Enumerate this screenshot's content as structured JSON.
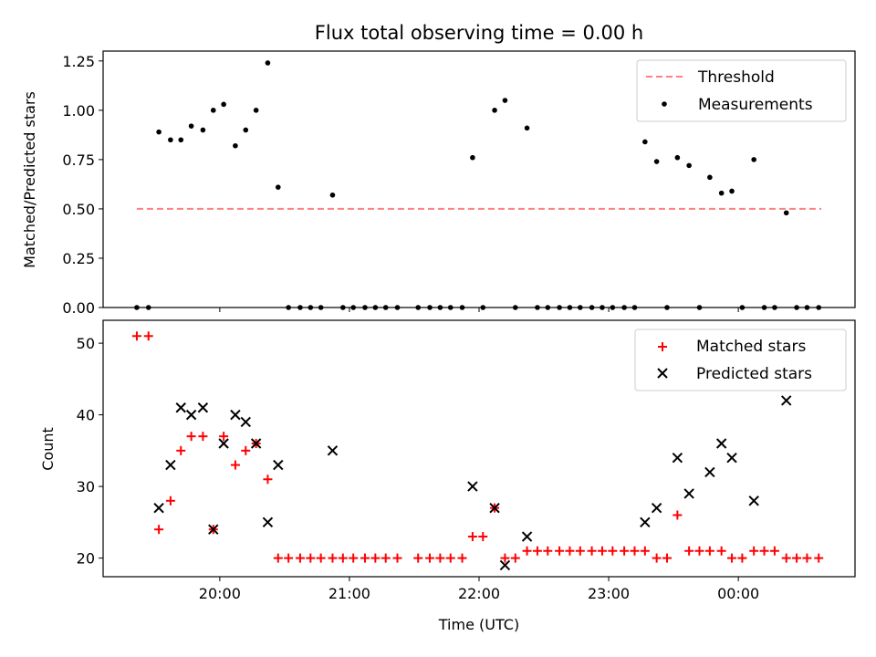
{
  "chart_data": {
    "title": "Flux total observing time = 0.00 h",
    "xlabel": "Time (UTC)",
    "x_ticks": [
      "20:00",
      "21:00",
      "22:00",
      "23:00",
      "00:00"
    ],
    "x_tick_hours": [
      20,
      21,
      22,
      23,
      24
    ],
    "xlim_hours": [
      19.1,
      24.9
    ],
    "panels": [
      {
        "type": "scatter",
        "ylabel": "Matched/Predicted stars",
        "ylim": [
          0,
          1.3
        ],
        "y_ticks": [
          0.0,
          0.25,
          0.5,
          0.75,
          1.0,
          1.25
        ],
        "y_tick_labels": [
          "0.00",
          "0.25",
          "0.50",
          "0.75",
          "1.00",
          "1.25"
        ],
        "legend_position": "top-right",
        "threshold": {
          "name": "Threshold",
          "value": 0.5,
          "x_range": [
            19.36,
            24.64
          ],
          "color": "#ff8080"
        },
        "series": [
          {
            "name": "Measurements",
            "color": "#000000",
            "x": [
              19.36,
              19.45,
              19.53,
              19.62,
              19.7,
              19.78,
              19.87,
              19.95,
              20.03,
              20.12,
              20.2,
              20.28,
              20.37,
              20.45,
              20.53,
              20.62,
              20.7,
              20.78,
              20.87,
              20.95,
              21.03,
              21.12,
              21.2,
              21.28,
              21.37,
              21.53,
              21.62,
              21.7,
              21.78,
              21.87,
              21.95,
              22.03,
              22.12,
              22.2,
              22.28,
              22.37,
              22.45,
              22.53,
              22.62,
              22.7,
              22.78,
              22.87,
              22.95,
              23.03,
              23.12,
              23.2,
              23.28,
              23.37,
              23.45,
              23.53,
              23.62,
              23.7,
              23.78,
              23.87,
              23.95,
              24.03,
              24.12,
              24.2,
              24.28,
              24.37,
              24.45,
              24.53,
              24.62
            ],
            "y": [
              0,
              0,
              0.89,
              0.85,
              0.85,
              0.92,
              0.9,
              1.0,
              1.03,
              0.82,
              0.9,
              1.0,
              1.24,
              0.61,
              0,
              0,
              0,
              0,
              0.57,
              0,
              0,
              0,
              0,
              0,
              0,
              0,
              0,
              0,
              0,
              0,
              0.76,
              0,
              1.0,
              1.05,
              0,
              0.91,
              0,
              0,
              0,
              0,
              0,
              0,
              0,
              0,
              0,
              0,
              0.84,
              0.74,
              0,
              0.76,
              0.72,
              0,
              0.66,
              0.58,
              0.59,
              0,
              0.75,
              0,
              0,
              0.48,
              0,
              0,
              0
            ]
          }
        ]
      },
      {
        "type": "scatter",
        "ylabel": "Count",
        "ylim": [
          17.4,
          53.2
        ],
        "y_ticks": [
          20,
          30,
          40,
          50
        ],
        "y_tick_labels": [
          "20",
          "30",
          "40",
          "50"
        ],
        "legend_position": "top-right",
        "series": [
          {
            "name": "Matched stars",
            "marker": "+",
            "color": "#ff0000",
            "x": [
              19.36,
              19.45,
              19.53,
              19.62,
              19.7,
              19.78,
              19.87,
              19.95,
              20.03,
              20.12,
              20.2,
              20.28,
              20.37,
              20.45,
              20.53,
              20.62,
              20.7,
              20.78,
              20.87,
              20.95,
              21.03,
              21.12,
              21.2,
              21.28,
              21.37,
              21.53,
              21.62,
              21.7,
              21.78,
              21.87,
              21.95,
              22.03,
              22.12,
              22.2,
              22.28,
              22.37,
              22.45,
              22.53,
              22.62,
              22.7,
              22.78,
              22.87,
              22.95,
              23.03,
              23.12,
              23.2,
              23.28,
              23.37,
              23.45,
              23.53,
              23.62,
              23.7,
              23.78,
              23.87,
              23.95,
              24.03,
              24.12,
              24.2,
              24.28,
              24.37,
              24.45,
              24.53,
              24.62
            ],
            "y": [
              51,
              51,
              24,
              28,
              35,
              37,
              37,
              24,
              37,
              33,
              35,
              36,
              31,
              20,
              20,
              20,
              20,
              20,
              20,
              20,
              20,
              20,
              20,
              20,
              20,
              20,
              20,
              20,
              20,
              20,
              23,
              23,
              27,
              20,
              20,
              21,
              21,
              21,
              21,
              21,
              21,
              21,
              21,
              21,
              21,
              21,
              21,
              20,
              20,
              26,
              21,
              21,
              21,
              21,
              20,
              20,
              21,
              21,
              21,
              20,
              20,
              20,
              20
            ]
          },
          {
            "name": "Predicted stars",
            "marker": "x",
            "color": "#000000",
            "x": [
              19.53,
              19.62,
              19.7,
              19.78,
              19.87,
              19.95,
              20.03,
              20.12,
              20.2,
              20.28,
              20.37,
              20.45,
              20.87,
              21.95,
              22.12,
              22.2,
              22.37,
              23.28,
              23.37,
              23.53,
              23.62,
              23.78,
              23.87,
              23.95,
              24.12,
              24.37
            ],
            "y": [
              27,
              33,
              41,
              40,
              41,
              24,
              36,
              40,
              39,
              36,
              25,
              33,
              35,
              30,
              27,
              19,
              23,
              25,
              27,
              34,
              29,
              32,
              36,
              34,
              28,
              42
            ]
          }
        ]
      }
    ]
  }
}
